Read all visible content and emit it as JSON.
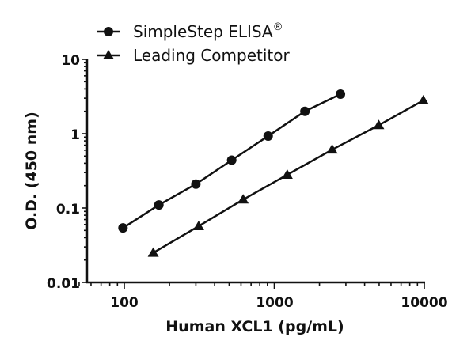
{
  "chart_data": {
    "type": "line",
    "title": "",
    "xlabel": "Human XCL1 (pg/mL)",
    "ylabel": "O.D. (450 nm)",
    "xscale": "log",
    "yscale": "log",
    "xlim": [
      50,
      10000
    ],
    "ylim": [
      0.01,
      10
    ],
    "x_ticks": [
      "100",
      "1000",
      "10000"
    ],
    "y_ticks": [
      "0.01",
      "0.1",
      "1",
      "10"
    ],
    "grid": false,
    "legend_position": "top-left",
    "series": [
      {
        "name": "SimpleStep ELISA®",
        "marker": "circle",
        "x": [
          98,
          170,
          300,
          520,
          910,
          1600,
          2760
        ],
        "y": [
          0.054,
          0.11,
          0.21,
          0.44,
          0.93,
          2.0,
          3.4
        ]
      },
      {
        "name": "Leading Competitor",
        "marker": "triangle",
        "x": [
          156,
          313,
          620,
          1220,
          2430,
          4970,
          9850
        ],
        "y": [
          0.025,
          0.057,
          0.13,
          0.28,
          0.61,
          1.3,
          2.8
        ]
      }
    ]
  },
  "legend": {
    "series1_label": "SimpleStep ELISA",
    "series1_mark": "®",
    "series2_label": "Leading Competitor"
  },
  "axes": {
    "xlabel": "Human XCL1 (pg/mL)",
    "ylabel": "O.D. (450 nm)",
    "x_tick_100": "100",
    "x_tick_1000": "1000",
    "x_tick_10000": "10000",
    "y_tick_10": "10",
    "y_tick_1": "1",
    "y_tick_01": "0.1",
    "y_tick_001": "0.01"
  }
}
